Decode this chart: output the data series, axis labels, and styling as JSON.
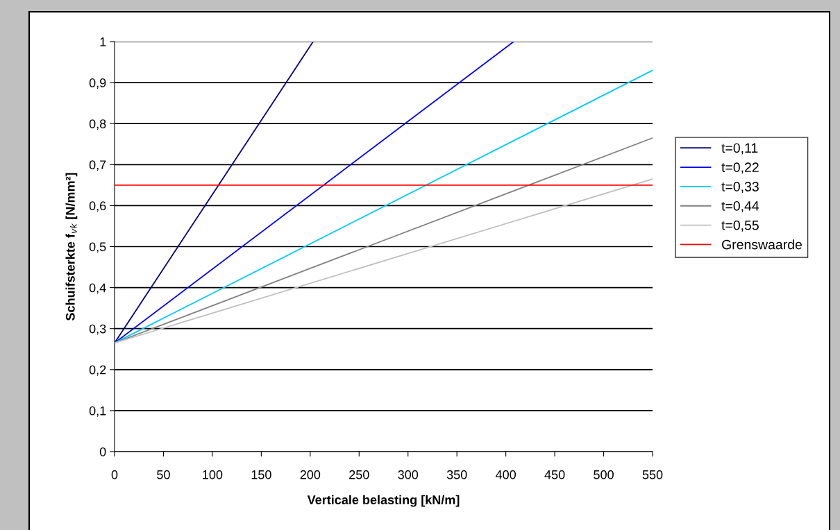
{
  "chart_data": {
    "type": "line",
    "xlabel": "Verticale belasting [kN/m]",
    "ylabel": "Schuifsterkte f$_{vk}$ [N/mm²]",
    "xlim": [
      0,
      550
    ],
    "xticks": [
      0,
      50,
      100,
      150,
      200,
      250,
      300,
      350,
      400,
      450,
      500,
      550
    ],
    "ylim": [
      0,
      1
    ],
    "yticks": [
      {
        "value": 0,
        "label": "0"
      },
      {
        "value": 0.1,
        "label": "0,1"
      },
      {
        "value": 0.2,
        "label": "0,2"
      },
      {
        "value": 0.3,
        "label": "0,3"
      },
      {
        "value": 0.4,
        "label": "0,4"
      },
      {
        "value": 0.5,
        "label": "0,5"
      },
      {
        "value": 0.6,
        "label": "0,6"
      },
      {
        "value": 0.7,
        "label": "0,7"
      },
      {
        "value": 0.8,
        "label": "0,8"
      },
      {
        "value": 0.9,
        "label": "0,9"
      },
      {
        "value": 1,
        "label": "1"
      }
    ],
    "grid": "y",
    "legend": "right",
    "marker": "none",
    "line_style": "solid",
    "series": [
      {
        "name": "t=0,11",
        "color": "#000080",
        "x": [
          0,
          203
        ],
        "values": [
          0.265,
          1.0
        ]
      },
      {
        "name": "t=0,22",
        "color": "#0000ff",
        "x": [
          0,
          408
        ],
        "values": [
          0.265,
          1.0
        ]
      },
      {
        "name": "t=0,33",
        "color": "#00ccff",
        "x": [
          0,
          550
        ],
        "values": [
          0.265,
          0.93
        ]
      },
      {
        "name": "t=0,44",
        "color": "#808080",
        "x": [
          0,
          550
        ],
        "values": [
          0.265,
          0.765
        ]
      },
      {
        "name": "t=0,55",
        "color": "#c0c0c0",
        "x": [
          0,
          550
        ],
        "values": [
          0.265,
          0.665
        ]
      },
      {
        "name": "Grenswaarde",
        "color": "#ff0000",
        "x": [
          0,
          550
        ],
        "values": [
          0.65,
          0.65
        ]
      }
    ]
  }
}
